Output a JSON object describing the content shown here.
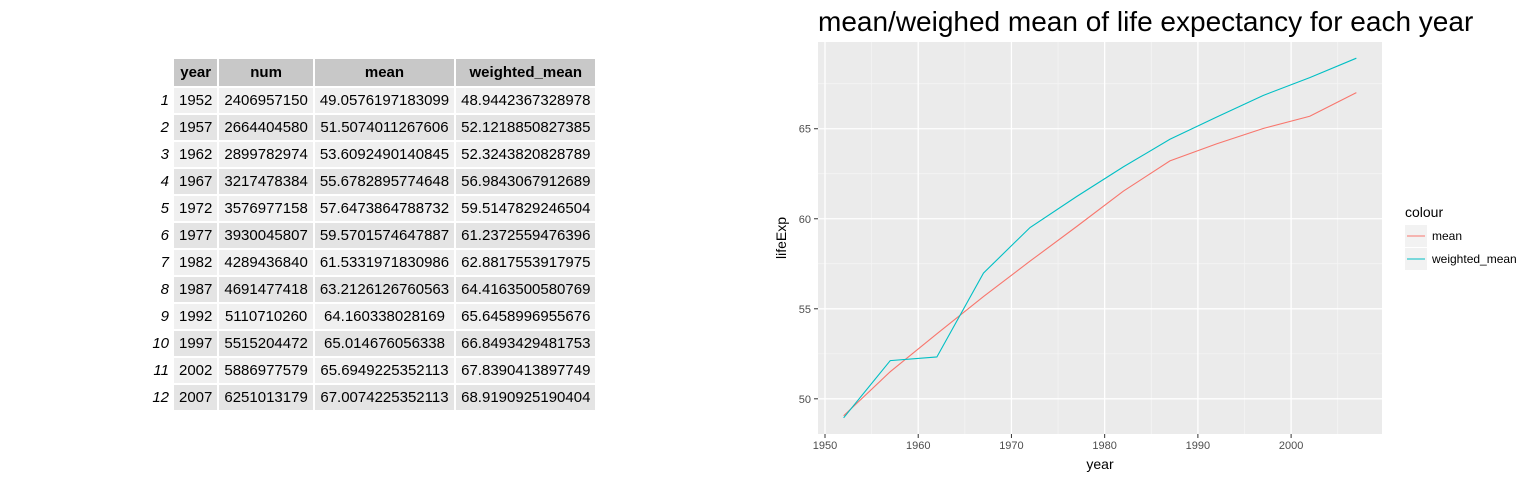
{
  "table": {
    "headers": [
      "year",
      "num",
      "mean",
      "weighted_mean"
    ],
    "rows": [
      {
        "index": "1",
        "year": "1952",
        "num": "2406957150",
        "mean": "49.0576197183099",
        "weighted_mean": "48.9442367328978"
      },
      {
        "index": "2",
        "year": "1957",
        "num": "2664404580",
        "mean": "51.5074011267606",
        "weighted_mean": "52.1218850827385"
      },
      {
        "index": "3",
        "year": "1962",
        "num": "2899782974",
        "mean": "53.6092490140845",
        "weighted_mean": "52.3243820828789"
      },
      {
        "index": "4",
        "year": "1967",
        "num": "3217478384",
        "mean": "55.6782895774648",
        "weighted_mean": "56.9843067912689"
      },
      {
        "index": "5",
        "year": "1972",
        "num": "3576977158",
        "mean": "57.6473864788732",
        "weighted_mean": "59.5147829246504"
      },
      {
        "index": "6",
        "year": "1977",
        "num": "3930045807",
        "mean": "59.5701574647887",
        "weighted_mean": "61.2372559476396"
      },
      {
        "index": "7",
        "year": "1982",
        "num": "4289436840",
        "mean": "61.5331971830986",
        "weighted_mean": "62.8817553917975"
      },
      {
        "index": "8",
        "year": "1987",
        "num": "4691477418",
        "mean": "63.2126126760563",
        "weighted_mean": "64.4163500580769"
      },
      {
        "index": "9",
        "year": "1992",
        "num": "5110710260",
        "mean": "64.160338028169",
        "weighted_mean": "65.6458996955676"
      },
      {
        "index": "10",
        "year": "1997",
        "num": "5515204472",
        "mean": "65.014676056338",
        "weighted_mean": "66.8493429481753"
      },
      {
        "index": "11",
        "year": "2002",
        "num": "5886977579",
        "mean": "65.6949225352113",
        "weighted_mean": "67.8390413897749"
      },
      {
        "index": "12",
        "year": "2007",
        "num": "6251013179",
        "mean": "67.0074225352113",
        "weighted_mean": "68.9190925190404"
      }
    ]
  },
  "chart_data": {
    "type": "line",
    "title": "mean/weighed mean of life expectancy for each year",
    "xlabel": "year",
    "ylabel": "lifeExp",
    "x": [
      1952,
      1957,
      1962,
      1967,
      1972,
      1977,
      1982,
      1987,
      1992,
      1997,
      2002,
      2007
    ],
    "series": [
      {
        "name": "mean",
        "color": "#F8766D",
        "values": [
          49.0576,
          51.5074,
          53.6092,
          55.6783,
          57.6474,
          59.5702,
          61.5332,
          63.2126,
          64.1603,
          65.0147,
          65.6949,
          67.0074
        ]
      },
      {
        "name": "weighted_mean",
        "color": "#00BFC4",
        "values": [
          48.9442,
          52.1219,
          52.3244,
          56.9843,
          59.5148,
          61.2373,
          62.8818,
          64.4164,
          65.6459,
          66.8493,
          67.839,
          68.9191
        ]
      }
    ],
    "xlim": [
      1949.25,
      2009.75
    ],
    "ylim": [
      48.0455,
      69.8178
    ],
    "x_ticks": [
      1950,
      1960,
      1970,
      1980,
      1990,
      2000
    ],
    "y_ticks": [
      50,
      55,
      60,
      65
    ],
    "legend_title": "colour",
    "legend_position": "right",
    "panel_background": "#EBEBEB",
    "grid": true
  }
}
